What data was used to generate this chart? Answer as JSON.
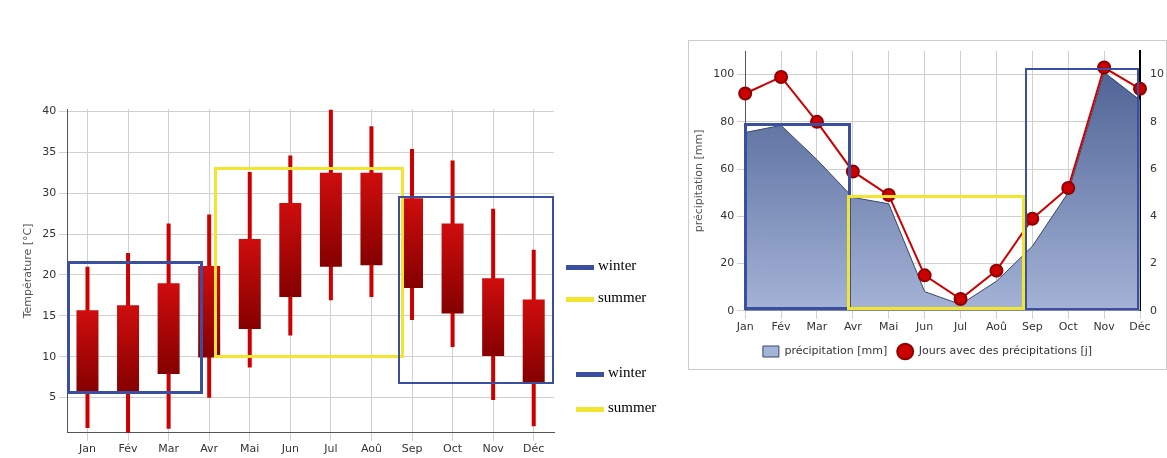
{
  "chart_data": [
    {
      "type": "candlestick",
      "ylabel": "Température [°C]",
      "categories": [
        "Jan",
        "Fév",
        "Mar",
        "Avr",
        "Mai",
        "Jun",
        "Jul",
        "Aoû",
        "Sep",
        "Oct",
        "Nov",
        "Déc"
      ],
      "ohlc": [
        [
          5.6,
          21.0,
          1.3,
          15.7
        ],
        [
          5.7,
          22.7,
          0.7,
          16.3
        ],
        [
          7.9,
          26.3,
          1.2,
          19.0
        ],
        [
          9.9,
          27.4,
          5.0,
          21.1
        ],
        [
          13.4,
          32.6,
          8.7,
          24.4
        ],
        [
          17.3,
          34.6,
          12.6,
          28.8
        ],
        [
          21.0,
          40.2,
          16.9,
          32.5
        ],
        [
          21.2,
          38.2,
          17.3,
          32.5
        ],
        [
          18.4,
          35.4,
          14.5,
          29.4
        ],
        [
          15.3,
          34.0,
          11.2,
          26.3
        ],
        [
          10.1,
          28.1,
          4.7,
          19.6
        ],
        [
          6.8,
          23.1,
          1.5,
          17.0
        ]
      ],
      "color": "#cc0000",
      "ylim": [
        0.7,
        40.3
      ],
      "yticks": [
        5,
        10,
        15,
        20,
        25,
        30,
        35,
        40
      ],
      "grid": true,
      "annotations": [
        "winter",
        "summer",
        "winter",
        "summer"
      ]
    },
    {
      "type": "area",
      "ylabel": "précipitation [mm]",
      "categories": [
        "Jan",
        "Fév",
        "Mar",
        "Avr",
        "Mai",
        "Jun",
        "Jul",
        "Aoû",
        "Sep",
        "Oct",
        "Nov",
        "Déc"
      ],
      "series": [
        {
          "name": "précipitation [mm]",
          "type": "area",
          "color": "#5a74b4",
          "values": [
            75.5,
            78.5,
            64,
            48,
            45.3,
            8.1,
            2.7,
            12.5,
            27.3,
            50.1,
            101,
            89.2
          ]
        },
        {
          "name": "Jours avec des précipitations [j]",
          "type": "line",
          "axis": "y2",
          "color": "#cc0000",
          "marker": "circle",
          "values": [
            9.2,
            9.9,
            8.0,
            5.9,
            4.9,
            1.5,
            0.5,
            1.7,
            3.9,
            5.2,
            10.3,
            9.4
          ]
        }
      ],
      "ylim": [
        0,
        110
      ],
      "yticks": [
        0,
        20,
        40,
        60,
        80,
        100
      ],
      "y2lim": [
        0,
        11
      ],
      "y2ticks": [
        0,
        2,
        4,
        6,
        8,
        10
      ],
      "grid": true,
      "legend": "bottom"
    }
  ]
}
